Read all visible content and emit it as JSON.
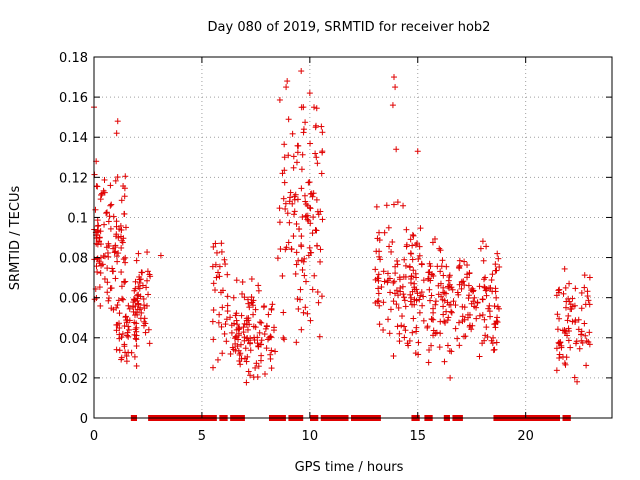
{
  "chart_data": {
    "type": "scatter",
    "title": "Day 080 of 2019, SRMTID for receiver hob2",
    "xlabel": "GPS time / hours",
    "ylabel": "SRMTID / TECUs",
    "xlim": [
      0,
      24
    ],
    "ylim": [
      0,
      0.18
    ],
    "x_ticks": [
      "0",
      "5",
      "10",
      "15",
      "20"
    ],
    "x_tick_values": [
      0,
      5,
      10,
      15,
      20
    ],
    "y_ticks": [
      "0",
      "0.02",
      "0.04",
      "0.06",
      "0.08",
      "0.1",
      "0.12",
      "0.14",
      "0.16",
      "0.18"
    ],
    "y_tick_values": [
      0,
      0.02,
      0.04,
      0.06,
      0.08,
      0.1,
      0.12,
      0.14,
      0.16,
      0.18
    ],
    "grid": true,
    "marker": "plus",
    "color": "#e00000",
    "clusters": [
      {
        "x_range": [
          0.0,
          1.5
        ],
        "y_range": [
          0.05,
          0.125
        ],
        "count": 120
      },
      {
        "x_range": [
          1.0,
          2.0
        ],
        "y_range": [
          0.02,
          0.065
        ],
        "count": 50
      },
      {
        "x_range": [
          1.8,
          2.6
        ],
        "y_range": [
          0.03,
          0.085
        ],
        "count": 55
      },
      {
        "x_range": [
          5.5,
          6.2
        ],
        "y_range": [
          0.02,
          0.1
        ],
        "count": 35
      },
      {
        "x_range": [
          6.3,
          8.4
        ],
        "y_range": [
          0.015,
          0.07
        ],
        "count": 120
      },
      {
        "x_range": [
          8.5,
          9.3
        ],
        "y_range": [
          0.03,
          0.17
        ],
        "count": 35
      },
      {
        "x_range": [
          9.3,
          10.6
        ],
        "y_range": [
          0.03,
          0.17
        ],
        "count": 95
      },
      {
        "x_range": [
          13.0,
          14.5
        ],
        "y_range": [
          0.03,
          0.115
        ],
        "count": 80
      },
      {
        "x_range": [
          14.5,
          16.6
        ],
        "y_range": [
          0.025,
          0.1
        ],
        "count": 130
      },
      {
        "x_range": [
          16.6,
          18.8
        ],
        "y_range": [
          0.03,
          0.09
        ],
        "count": 110
      },
      {
        "x_range": [
          21.4,
          23.0
        ],
        "y_range": [
          0.015,
          0.08
        ],
        "count": 80
      }
    ],
    "outliers": [
      {
        "x": 0.0,
        "y": 0.155
      },
      {
        "x": 0.1,
        "y": 0.128
      },
      {
        "x": 1.1,
        "y": 0.148
      },
      {
        "x": 1.05,
        "y": 0.142
      },
      {
        "x": 3.1,
        "y": 0.081
      },
      {
        "x": 8.9,
        "y": 0.165
      },
      {
        "x": 8.95,
        "y": 0.168
      },
      {
        "x": 9.0,
        "y": 0.131
      },
      {
        "x": 9.6,
        "y": 0.173
      },
      {
        "x": 9.7,
        "y": 0.155
      },
      {
        "x": 10.0,
        "y": 0.162
      },
      {
        "x": 10.3,
        "y": 0.13
      },
      {
        "x": 13.9,
        "y": 0.17
      },
      {
        "x": 13.95,
        "y": 0.165
      },
      {
        "x": 13.85,
        "y": 0.156
      },
      {
        "x": 14.0,
        "y": 0.134
      },
      {
        "x": 15.0,
        "y": 0.133
      },
      {
        "x": 16.5,
        "y": 0.02
      }
    ],
    "zero_ranges": [
      [
        1.8,
        1.9
      ],
      [
        2.6,
        5.6
      ],
      [
        5.9,
        6.1
      ],
      [
        6.4,
        6.9
      ],
      [
        8.2,
        8.8
      ],
      [
        9.1,
        9.6
      ],
      [
        10.1,
        10.3
      ],
      [
        10.6,
        11.7
      ],
      [
        12.0,
        13.2
      ],
      [
        14.8,
        15.0
      ],
      [
        15.4,
        15.6
      ],
      [
        16.3,
        16.4
      ],
      [
        16.7,
        17.0
      ],
      [
        18.6,
        21.5
      ],
      [
        21.8,
        22.0
      ]
    ]
  }
}
